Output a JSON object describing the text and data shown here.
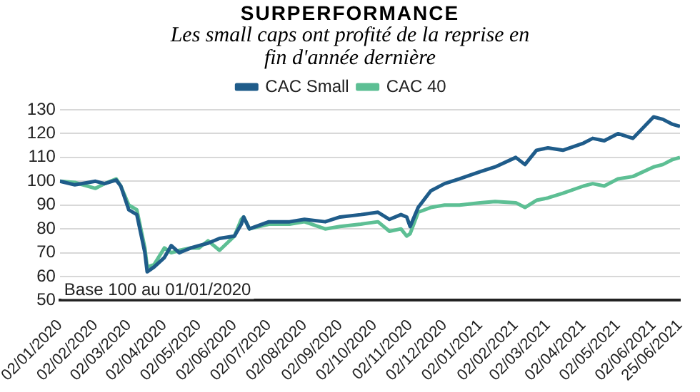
{
  "chart_data": {
    "type": "line",
    "title": "SURPERFORMANCE",
    "subtitle": "Les small caps ont profité de la reprise en fin d'année dernière",
    "annotations": [
      "Base 100 au 01/01/2020"
    ],
    "legend": "top",
    "grid": "y",
    "marker": "none",
    "line_style": "solid",
    "xlim": [
      "2020-01-02",
      "2021-06-25"
    ],
    "xticks": [
      {
        "value": "2020-01-02",
        "label": "02/01/2020"
      },
      {
        "value": "2020-02-02",
        "label": "02/02/2020"
      },
      {
        "value": "2020-03-02",
        "label": "02/03/2020"
      },
      {
        "value": "2020-04-02",
        "label": "02/04/2020"
      },
      {
        "value": "2020-05-02",
        "label": "02/05/2020"
      },
      {
        "value": "2020-06-02",
        "label": "02/06/2020"
      },
      {
        "value": "2020-07-02",
        "label": "02/07/2020"
      },
      {
        "value": "2020-08-02",
        "label": "02/08/2020"
      },
      {
        "value": "2020-09-02",
        "label": "02/09/2020"
      },
      {
        "value": "2020-10-02",
        "label": "02/10/2020"
      },
      {
        "value": "2020-11-02",
        "label": "02/11/2020"
      },
      {
        "value": "2020-12-02",
        "label": "02/12/2020"
      },
      {
        "value": "2021-01-02",
        "label": "02/01/2021"
      },
      {
        "value": "2021-02-02",
        "label": "02/02/2021"
      },
      {
        "value": "2021-03-02",
        "label": "02/03/2021"
      },
      {
        "value": "2021-04-02",
        "label": "02/04/2021"
      },
      {
        "value": "2021-05-02",
        "label": "02/05/2021"
      },
      {
        "value": "2021-06-02",
        "label": "02/06/2021"
      },
      {
        "value": "2021-06-25",
        "label": "25/06/2021"
      }
    ],
    "ylim": [
      50,
      130
    ],
    "yticks": [
      50,
      60,
      70,
      80,
      90,
      100,
      110,
      120,
      130
    ],
    "x": [
      "2020-01-02",
      "2020-01-15",
      "2020-02-02",
      "2020-02-10",
      "2020-02-20",
      "2020-02-24",
      "2020-03-02",
      "2020-03-09",
      "2020-03-16",
      "2020-03-18",
      "2020-03-24",
      "2020-04-02",
      "2020-04-08",
      "2020-04-15",
      "2020-04-25",
      "2020-05-02",
      "2020-05-10",
      "2020-05-20",
      "2020-06-02",
      "2020-06-08",
      "2020-06-10",
      "2020-06-15",
      "2020-07-02",
      "2020-07-20",
      "2020-08-02",
      "2020-08-20",
      "2020-09-02",
      "2020-09-20",
      "2020-10-05",
      "2020-10-15",
      "2020-10-25",
      "2020-10-30",
      "2020-11-02",
      "2020-11-09",
      "2020-11-20",
      "2020-12-02",
      "2020-12-15",
      "2021-01-02",
      "2021-01-15",
      "2021-02-02",
      "2021-02-10",
      "2021-02-20",
      "2021-03-02",
      "2021-03-15",
      "2021-04-02",
      "2021-04-10",
      "2021-04-20",
      "2021-05-02",
      "2021-05-15",
      "2021-06-02",
      "2021-06-10",
      "2021-06-18",
      "2021-06-25"
    ],
    "series": [
      {
        "name": "CAC Small",
        "color": "#1f5c8a",
        "values": [
          100,
          98.5,
          100,
          99,
          100.5,
          98,
          88,
          86,
          70,
          62,
          64,
          68,
          73,
          70,
          72,
          73,
          74,
          76,
          77,
          82,
          85,
          80,
          83,
          83,
          84,
          83,
          85,
          86,
          87,
          84,
          86,
          85,
          81,
          89,
          96,
          99,
          101,
          104,
          106,
          110,
          107,
          113,
          114,
          113,
          116,
          118,
          117,
          120,
          118,
          127,
          126,
          124,
          123
        ]
      },
      {
        "name": "CAC 40",
        "color": "#5dbf94",
        "values": [
          100,
          99.5,
          97,
          99,
          101,
          98,
          90,
          88,
          72,
          64,
          65,
          72,
          70,
          71,
          72,
          72,
          75,
          71,
          77,
          84,
          85,
          80,
          82,
          82,
          83,
          80,
          81,
          82,
          83,
          79,
          80,
          77,
          78,
          87,
          89,
          90,
          90,
          91,
          91.5,
          91,
          89,
          92,
          93,
          95,
          98,
          99,
          98,
          101,
          102,
          106,
          107,
          109,
          110
        ]
      }
    ]
  }
}
